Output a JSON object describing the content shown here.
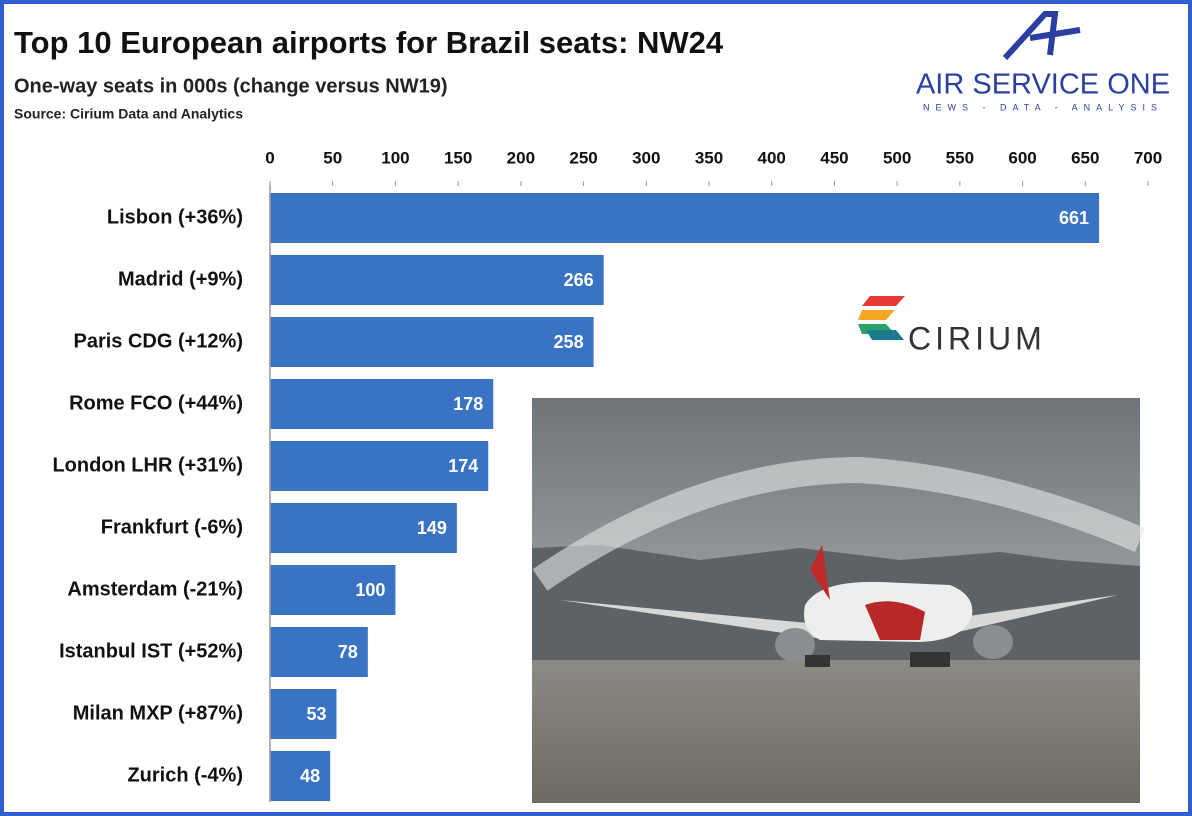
{
  "chart_data": {
    "type": "bar",
    "orientation": "horizontal",
    "title": "Top 10 European airports for Brazil seats: NW24",
    "subtitle": "One-way seats in 000s (change versus NW19)",
    "source": "Source: Cirium Data and Analytics",
    "annotations": [
      "AIR SERVICE ONE",
      "NEWS - DATA - ANALYSIS",
      "CIRIUM"
    ],
    "categories": [
      "Lisbon (+36%)",
      "Madrid (+9%)",
      "Paris CDG (+12%)",
      "Rome FCO (+44%)",
      "London LHR (+31%)",
      "Frankfurt (-6%)",
      "Amsterdam (-21%)",
      "Istanbul IST (+52%)",
      "Milan MXP (+87%)",
      "Zurich (-4%)"
    ],
    "values": [
      661,
      266,
      258,
      178,
      174,
      149,
      100,
      78,
      53,
      48
    ],
    "color": "#3a72c4",
    "xlim": [
      0,
      700
    ],
    "xticks": [
      0,
      50,
      100,
      150,
      200,
      250,
      300,
      350,
      400,
      450,
      500,
      550,
      600,
      650,
      700
    ]
  }
}
